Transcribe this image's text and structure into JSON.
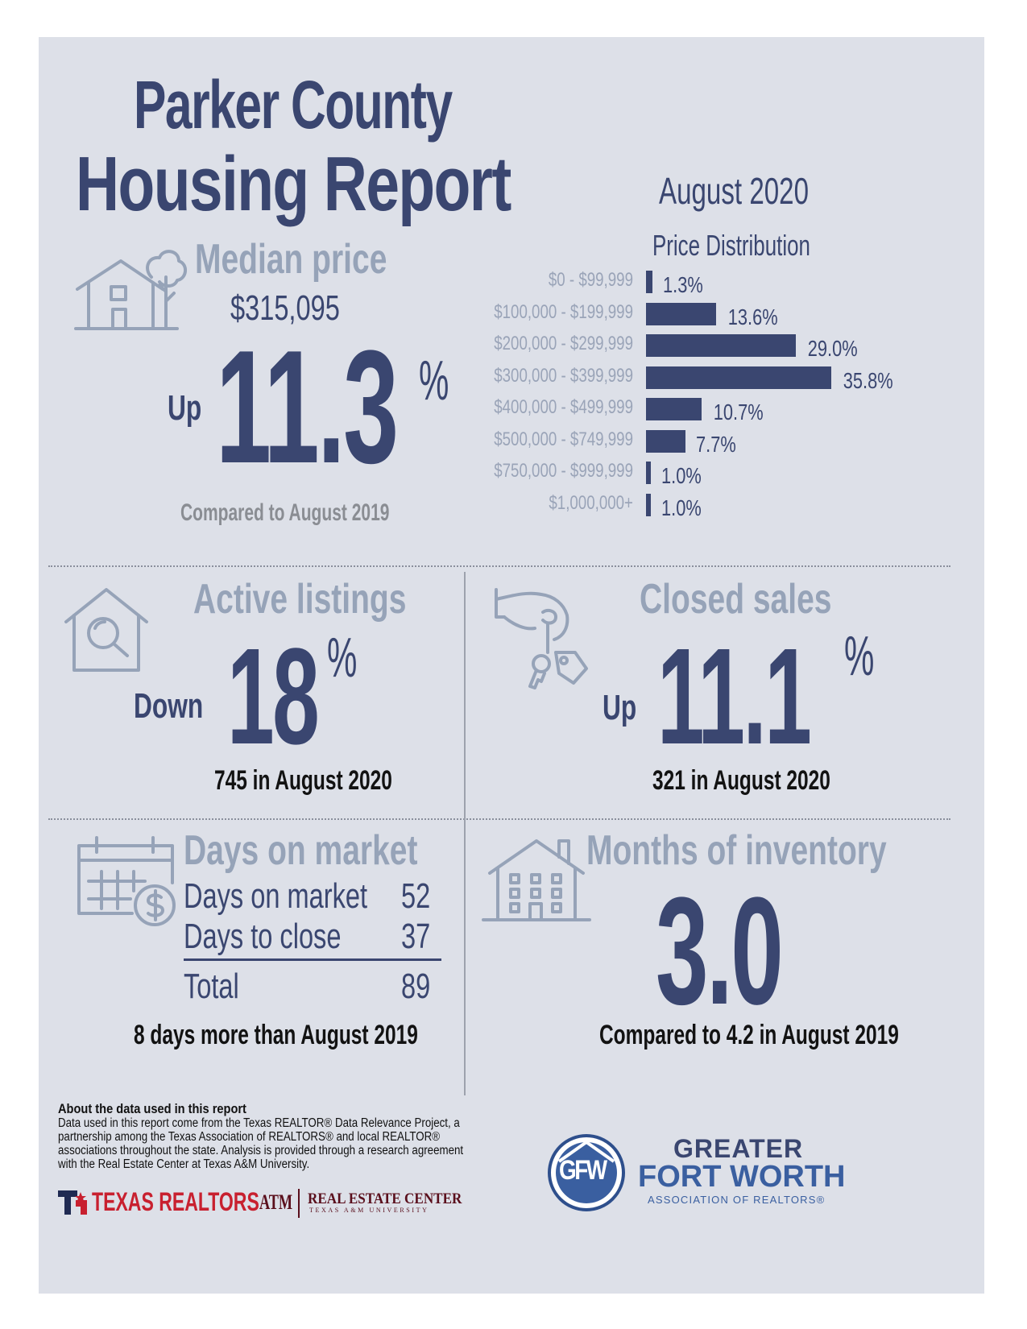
{
  "header": {
    "title_line1": "Parker County",
    "title_line2": "Housing Report",
    "period": "August 2020"
  },
  "median_price": {
    "heading": "Median price",
    "value": "$315,095",
    "direction": "Up",
    "change": "11.3",
    "percent_sign": "%",
    "comparison": "Compared to August 2019",
    "icon": "house-with-tree-icon"
  },
  "price_distribution": {
    "heading": "Price Distribution",
    "chart_data": {
      "type": "bar",
      "orientation": "horizontal",
      "title": "Price Distribution",
      "categories": [
        "$0 - $99,999",
        "$100,000 - $199,999",
        "$200,000 - $299,999",
        "$300,000 - $399,999",
        "$400,000 - $499,999",
        "$500,000 - $749,999",
        "$750,000 - $999,999",
        "$1,000,000+"
      ],
      "values": [
        1.3,
        13.6,
        29.0,
        35.8,
        10.7,
        7.7,
        1.0,
        1.0
      ],
      "value_labels": [
        "1.3%",
        "13.6%",
        "29.0%",
        "35.8%",
        "10.7%",
        "7.7%",
        "1.0%",
        "1.0%"
      ],
      "color": "#3a4670"
    }
  },
  "active_listings": {
    "heading": "Active listings",
    "direction": "Down",
    "change": "18",
    "percent_sign": "%",
    "detail": "745 in August 2020",
    "icon": "house-search-icon"
  },
  "closed_sales": {
    "heading": "Closed sales",
    "direction": "Up",
    "change": "11.1",
    "percent_sign": "%",
    "detail": "321 in August 2020",
    "icon": "hand-keys-icon"
  },
  "days_on_market": {
    "heading": "Days on market",
    "rows": [
      {
        "label": "Days on market",
        "value": "52"
      },
      {
        "label": "Days to close",
        "value": "37"
      }
    ],
    "total": {
      "label": "Total",
      "value": "89"
    },
    "detail": "8 days more than August 2019",
    "icon": "calendar-dollar-icon"
  },
  "months_inventory": {
    "heading": "Months of inventory",
    "value": "3.0",
    "detail": "Compared to 4.2 in August 2019",
    "icon": "apartment-building-icon"
  },
  "footer": {
    "about_heading": "About the data used in this report",
    "about_lines": [
      "Data used in this report come from the Texas REALTOR® Data Relevance Project, a",
      "partnership among the Texas Association of REALTORS® and local REALTOR®",
      "associations throughout the state. Analysis is provided through a research agreement",
      "with the Real Estate Center at Texas A&M University."
    ],
    "texas_realtors_logo": "TEXAS REALTORS",
    "rec_logo_main": "REAL ESTATE CENTER",
    "rec_logo_sub": "TEXAS A&M UNIVERSITY",
    "atm_mark": "ATM",
    "gfw_monogram": "GFW",
    "gfw_line1": "GREATER",
    "gfw_line2": "FORT WORTH",
    "gfw_line3": "ASSOCIATION OF REALTORS®"
  },
  "colors": {
    "navy": "#3a4670",
    "steel": "#96a3b8",
    "panel": "#dde0e8",
    "gfw_blue": "#3a5fa0",
    "texas_red": "#c8202f"
  }
}
